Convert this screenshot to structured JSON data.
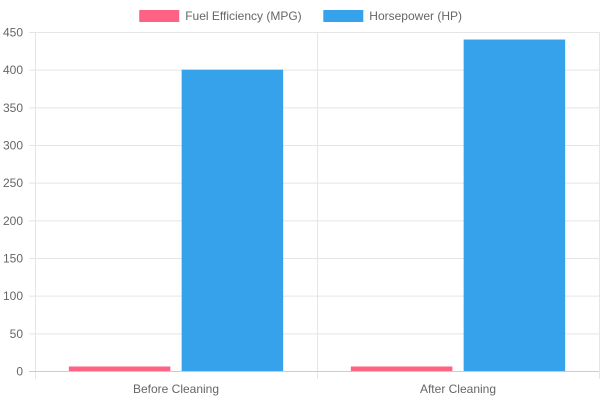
{
  "chart_data": {
    "type": "bar",
    "categories": [
      "Before Cleaning",
      "After Cleaning"
    ],
    "series": [
      {
        "name": "Fuel Efficiency (MPG)",
        "values": [
          6,
          6
        ],
        "color": "#ff6384"
      },
      {
        "name": "Horsepower (HP)",
        "values": [
          400,
          440
        ],
        "color": "#36a2eb"
      }
    ],
    "ylim": [
      0,
      450
    ],
    "yticks": [
      0,
      50,
      100,
      150,
      200,
      250,
      300,
      350,
      400,
      450
    ],
    "grid": true,
    "legend_position": "top"
  }
}
